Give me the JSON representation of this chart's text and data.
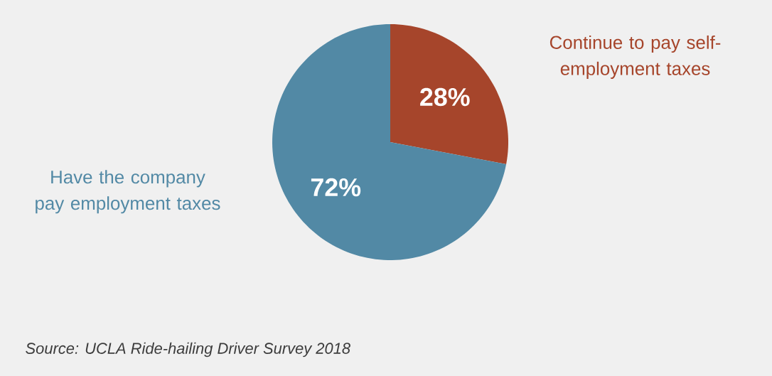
{
  "chart_data": {
    "type": "pie",
    "categories": [
      "Continue to pay self-employment taxes",
      "Have the company pay employment taxes"
    ],
    "values": [
      28,
      72
    ],
    "colors": [
      "#a6452b",
      "#5289a5"
    ],
    "value_labels": [
      "28%",
      "72%"
    ],
    "legend": false,
    "annotations": [
      "Source: UCLA Ride-hailing Driver Survey 2018"
    ]
  }
}
